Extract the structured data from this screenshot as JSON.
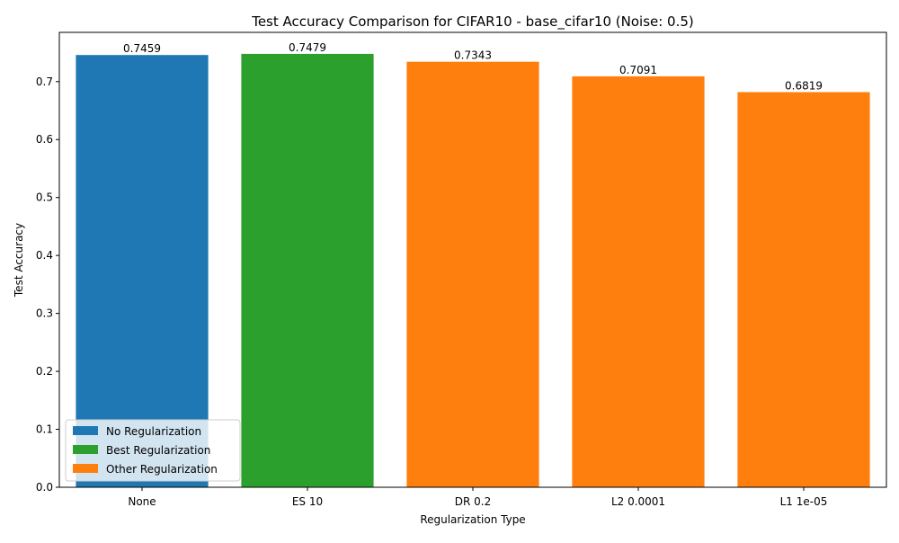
{
  "chart_data": {
    "type": "bar",
    "title": "Test Accuracy Comparison for CIFAR10 - base_cifar10 (Noise: 0.5)",
    "xlabel": "Regularization Type",
    "ylabel": "Test Accuracy",
    "categories": [
      "None",
      "ES 10",
      "DR 0.2",
      "L2 0.0001",
      "L1 1e-05"
    ],
    "values": [
      0.7459,
      0.7479,
      0.7343,
      0.7091,
      0.6819
    ],
    "value_labels": [
      "0.7459",
      "0.7479",
      "0.7343",
      "0.7091",
      "0.6819"
    ],
    "bar_groups": [
      "none",
      "best",
      "other",
      "other",
      "other"
    ],
    "ylim": [
      0,
      0.785
    ],
    "yticks": [
      0.0,
      0.1,
      0.2,
      0.3,
      0.4,
      0.5,
      0.6,
      0.7
    ],
    "ytick_labels": [
      "0.0",
      "0.1",
      "0.2",
      "0.3",
      "0.4",
      "0.5",
      "0.6",
      "0.7"
    ],
    "grid": false,
    "legend_position": "lower-left",
    "legend": [
      {
        "key": "none",
        "label": "No Regularization",
        "color": "#1f77b4"
      },
      {
        "key": "best",
        "label": "Best Regularization",
        "color": "#2ca02c"
      },
      {
        "key": "other",
        "label": "Other Regularization",
        "color": "#ff7f0e"
      }
    ]
  }
}
